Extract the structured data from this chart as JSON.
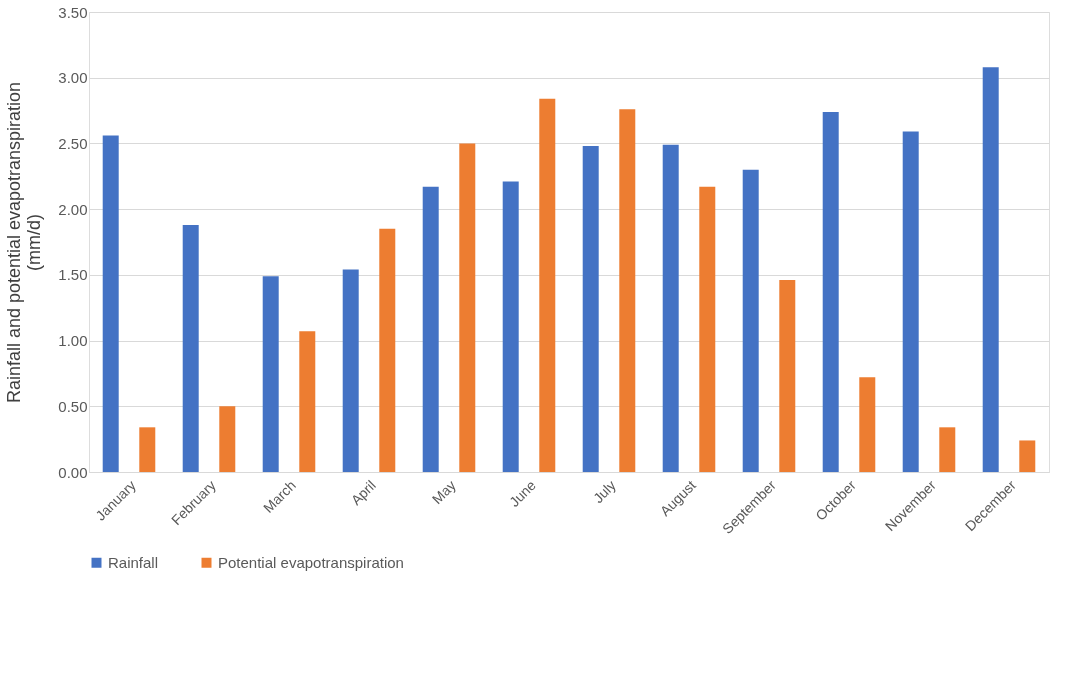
{
  "chart_data": {
    "type": "bar",
    "ylabel": "Rainfall and potential evapotranspiration\n(mm/d)",
    "categories": [
      "January",
      "February",
      "March",
      "April",
      "May",
      "June",
      "July",
      "August",
      "September",
      "October",
      "November",
      "December"
    ],
    "series": [
      {
        "name": "Rainfall",
        "color": "#4472c4",
        "values": [
          2.56,
          1.88,
          1.49,
          1.54,
          2.17,
          2.21,
          2.48,
          2.49,
          2.3,
          2.74,
          2.59,
          3.08
        ]
      },
      {
        "name": "Potential evapotranspiration",
        "color": "#ed7d31",
        "values": [
          0.34,
          0.5,
          1.07,
          1.85,
          2.5,
          2.84,
          2.76,
          2.17,
          1.46,
          0.72,
          0.34,
          0.24
        ]
      }
    ],
    "ylim": [
      0,
      3.5
    ],
    "yticks": [
      {
        "value": 0,
        "label": "0.00"
      },
      {
        "value": 0.5,
        "label": "0.50"
      },
      {
        "value": 1,
        "label": "1.00"
      },
      {
        "value": 1.5,
        "label": "1.50"
      },
      {
        "value": 2,
        "label": "2.00"
      },
      {
        "value": 2.5,
        "label": "2.50"
      },
      {
        "value": 3,
        "label": "3.00"
      },
      {
        "value": 3.5,
        "label": "3.50"
      }
    ],
    "grid": "y",
    "legend": "bottom"
  }
}
